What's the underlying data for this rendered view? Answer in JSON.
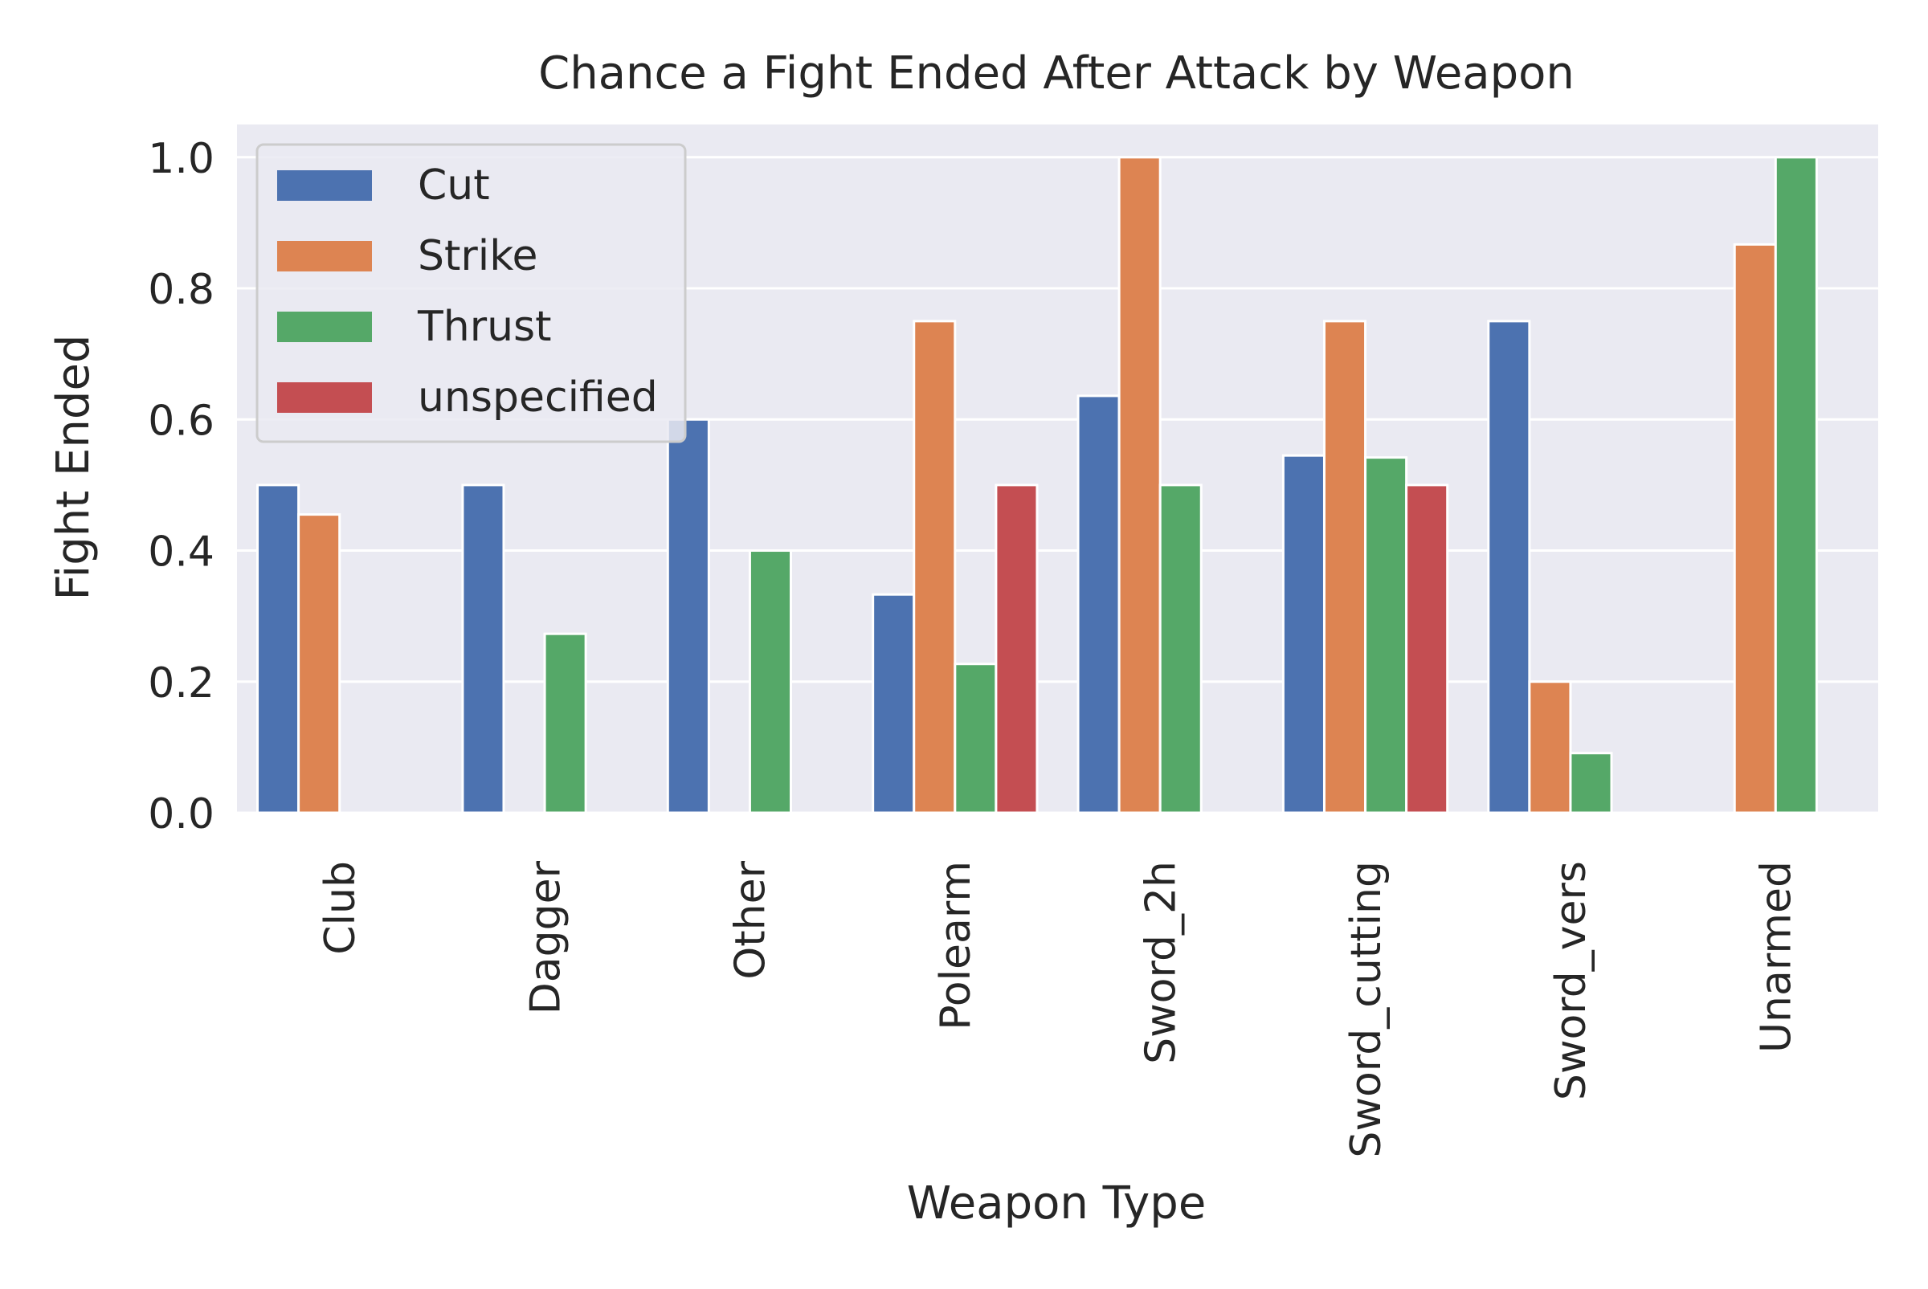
{
  "chart_data": {
    "type": "bar",
    "title": "Chance a Fight Ended After Attack by Weapon",
    "xlabel": "Weapon Type",
    "ylabel": "Fight Ended",
    "categories": [
      "Club",
      "Dagger",
      "Other",
      "Polearm",
      "Sword_2h",
      "Sword_cutting",
      "Sword_vers",
      "Unarmed"
    ],
    "ylim": [
      0,
      1.05
    ],
    "yticks": [
      "0.0",
      "0.2",
      "0.4",
      "0.6",
      "0.8",
      "1.0"
    ],
    "ytick_values": [
      0,
      0.2,
      0.4,
      0.6,
      0.8,
      1.0
    ],
    "grid": true,
    "legend_position": "top-left",
    "series": [
      {
        "name": "Cut",
        "color": "#4c72b0",
        "values": [
          0.5,
          0.5,
          0.6,
          0.333,
          0.636,
          0.545,
          0.75,
          null
        ]
      },
      {
        "name": "Strike",
        "color": "#dd8452",
        "values": [
          0.455,
          null,
          null,
          0.75,
          1.0,
          0.75,
          0.2,
          0.867
        ]
      },
      {
        "name": "Thrust",
        "color": "#55a868",
        "values": [
          null,
          0.273,
          0.4,
          0.227,
          0.5,
          0.542,
          0.091,
          1.0
        ]
      },
      {
        "name": "unspecified",
        "color": "#c44e52",
        "values": [
          null,
          null,
          null,
          0.5,
          null,
          0.5,
          null,
          null
        ]
      }
    ],
    "background_color": "#eaeaf2",
    "grid_color": "#ffffff"
  }
}
